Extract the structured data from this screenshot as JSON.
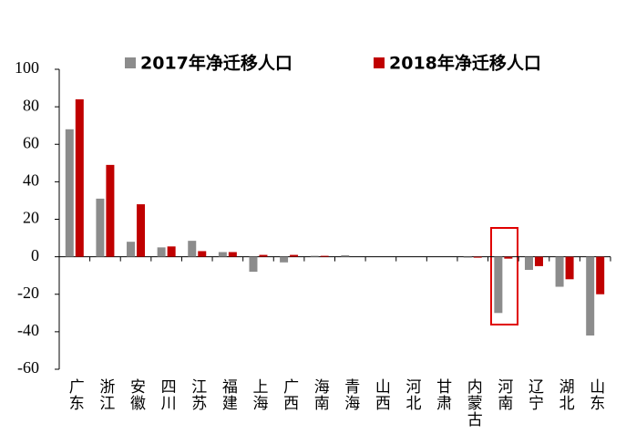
{
  "chart_data": {
    "type": "bar",
    "categories": [
      "广东",
      "浙江",
      "安徽",
      "四川",
      "江苏",
      "福建",
      "上海",
      "广西",
      "海南",
      "青海",
      "山西",
      "河北",
      "甘肃",
      "内蒙古",
      "河南",
      "辽宁",
      "湖北",
      "山东"
    ],
    "series": [
      {
        "name": "2017年净迁移人口",
        "color": "#8c8c8c",
        "values": [
          68,
          31,
          8,
          5,
          8.5,
          2.5,
          -8,
          -3,
          0.5,
          0.8,
          0,
          0,
          0,
          -0.5,
          -30,
          -7,
          -16,
          -42
        ]
      },
      {
        "name": "2018年净迁移人口",
        "color": "#c00000",
        "values": [
          84,
          49,
          28,
          5.5,
          3,
          2.5,
          1,
          1,
          0.5,
          0,
          0,
          0,
          0,
          -0.5,
          -1,
          -5,
          -12,
          -20
        ]
      }
    ],
    "ylim": [
      -60,
      100
    ],
    "yticks": [
      -60,
      -40,
      -20,
      0,
      20,
      40,
      60,
      80,
      100
    ],
    "grid": false
  }
}
